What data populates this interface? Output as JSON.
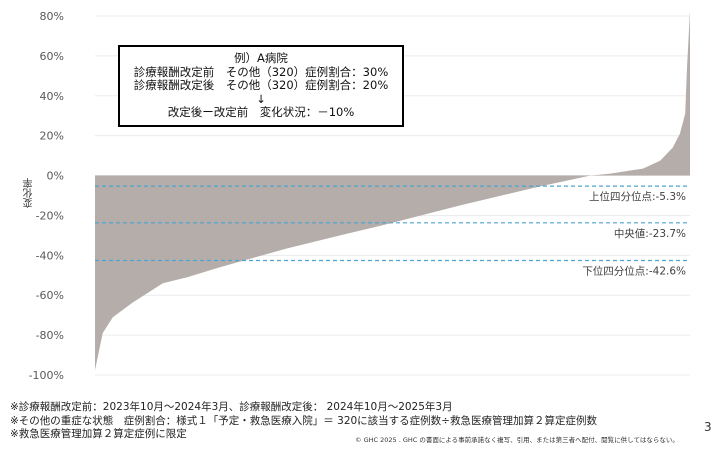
{
  "chart_data": {
    "type": "area",
    "title": "",
    "xlabel": "",
    "ylabel": "変化率",
    "ylim": [
      -100,
      80
    ],
    "yticks": [
      "80%",
      "60%",
      "40%",
      "20%",
      "0%",
      "-20%",
      "-40%",
      "-60%",
      "-80%",
      "-100%"
    ],
    "ytick_values": [
      80,
      60,
      40,
      20,
      0,
      -20,
      -40,
      -60,
      -80,
      -100
    ],
    "grid": true,
    "fill_color": "#b4ada9",
    "reference_line_color": "#4ba3d3",
    "x_percentile": [
      0,
      1.3,
      3,
      6.4,
      11.4,
      15.5,
      21,
      25,
      32.3,
      41.2,
      50,
      61.3,
      75,
      83.2,
      86.6,
      92.1,
      95,
      97.1,
      98.3,
      99.2,
      99.5,
      100
    ],
    "values": [
      -97.5,
      -79,
      -71,
      -63.5,
      -54,
      -51,
      -46,
      -42.6,
      -36.5,
      -30,
      -23.7,
      -15,
      -5.3,
      0,
      1,
      3.5,
      7.5,
      14,
      21,
      31,
      54,
      82.5
    ],
    "reference_lines": [
      {
        "label": "上位四分位点:-5.3%",
        "value": -5.3
      },
      {
        "label": "中央値:-23.7%",
        "value": -23.7
      },
      {
        "label": "下位四分位点:-42.6%",
        "value": -42.6
      }
    ]
  },
  "example_box": {
    "line1": "例）A病院",
    "line2": "診療報酬改定前　その他（320）症例割合：30%",
    "line3": "診療報酬改定後　その他（320）症例割合：20%",
    "arrow": "↓",
    "line4": "改定後ー改定前　変化状況：－10%"
  },
  "footer": {
    "note1": "※診療報酬改定前：2023年10月～2024年3月、診療報酬改定後：  2024年10月～2025年3月",
    "note2": "※その他の重症な状態　症例割合：様式１「予定・救急医療入院」＝ 320に該当する症例数÷救急医療管理加算２算定症例数",
    "note3": "※救急医療管理加算２算定症例に限定",
    "copyright": "© GHC 2025 . GHC の書面による事前承諾なく複写、引用、または第三者へ配付、閲覧に供してはならない。",
    "page_number": "3"
  }
}
